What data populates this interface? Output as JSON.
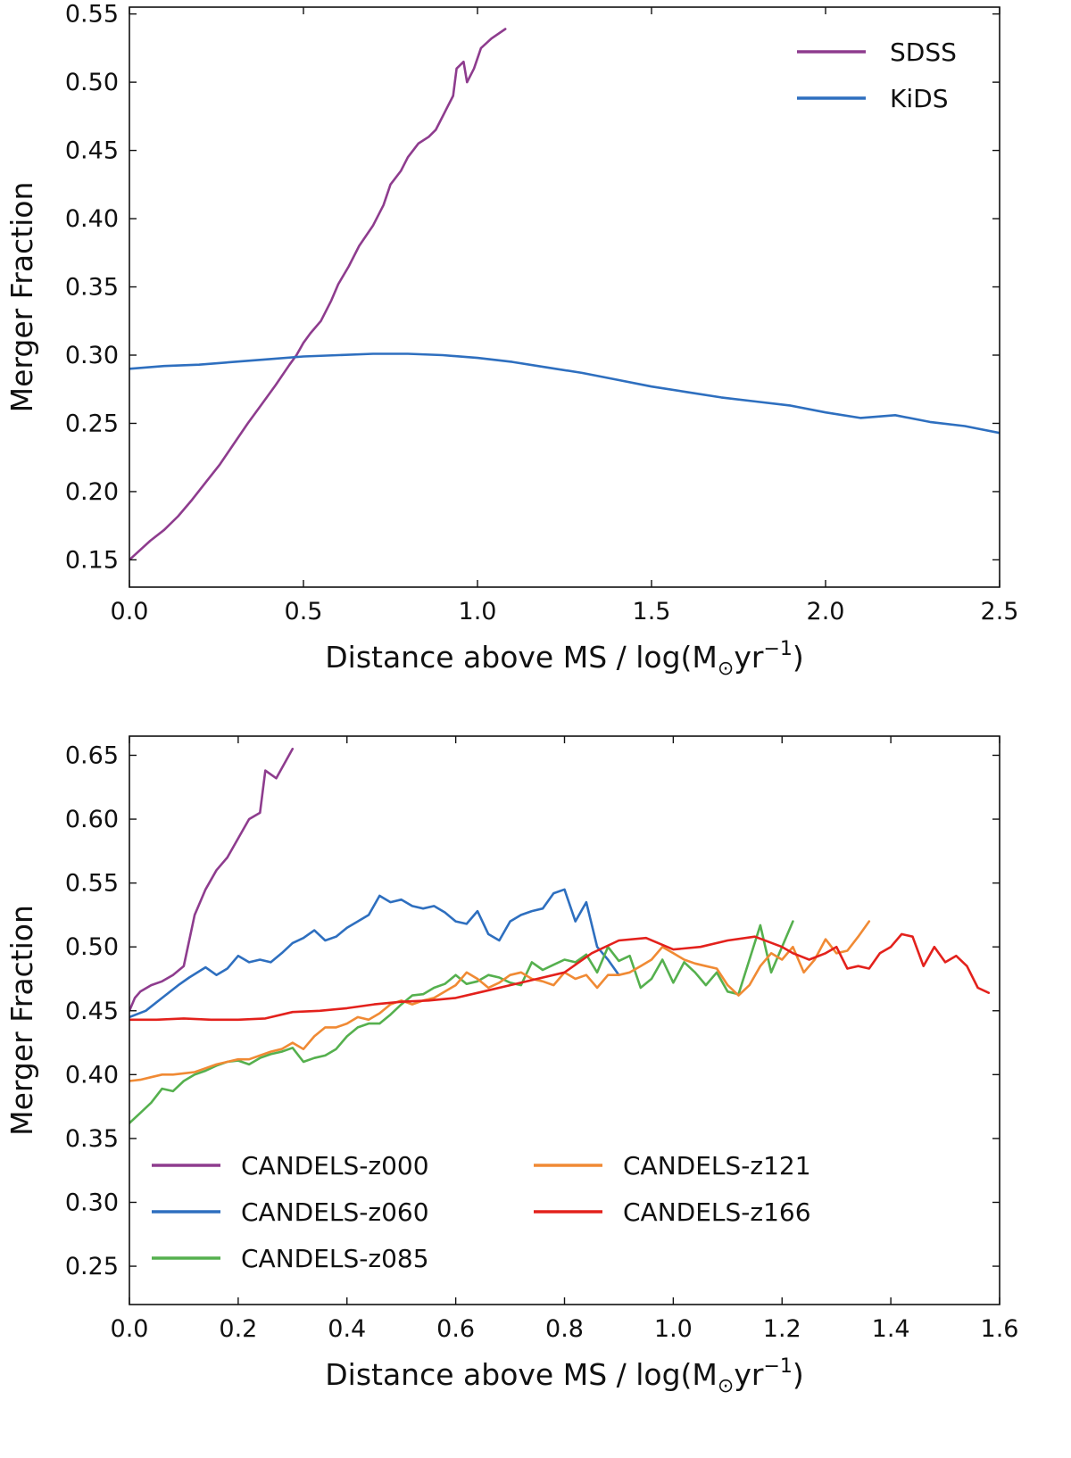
{
  "chart_data": [
    {
      "type": "line",
      "title": "",
      "xlabel": "Distance above MS / log(M",
      "xlabel_unit": "yr",
      "xlabel_exp": "−1",
      "xlabel_close": ")",
      "sun_symbol": "⊙",
      "ylabel": "Merger Fraction",
      "xlim": [
        0.0,
        2.5
      ],
      "ylim": [
        0.13,
        0.555
      ],
      "xticks": [
        "0.0",
        "0.5",
        "1.0",
        "1.5",
        "2.0",
        "2.5"
      ],
      "yticks": [
        "0.15",
        "0.20",
        "0.25",
        "0.30",
        "0.35",
        "0.40",
        "0.45",
        "0.50",
        "0.55"
      ],
      "legend_position": "top-right",
      "series": [
        {
          "name": "SDSS",
          "color": "#8e3c8e",
          "x": [
            0.0,
            0.03,
            0.06,
            0.1,
            0.14,
            0.18,
            0.22,
            0.26,
            0.3,
            0.34,
            0.38,
            0.42,
            0.46,
            0.48,
            0.5,
            0.52,
            0.55,
            0.58,
            0.6,
            0.63,
            0.66,
            0.7,
            0.73,
            0.75,
            0.78,
            0.8,
            0.83,
            0.86,
            0.88,
            0.9,
            0.91,
            0.93,
            0.94,
            0.96,
            0.97,
            0.99,
            1.01,
            1.04,
            1.08
          ],
          "values": [
            0.15,
            0.157,
            0.164,
            0.172,
            0.182,
            0.194,
            0.207,
            0.22,
            0.235,
            0.25,
            0.264,
            0.278,
            0.293,
            0.3,
            0.309,
            0.316,
            0.325,
            0.34,
            0.352,
            0.365,
            0.38,
            0.395,
            0.41,
            0.425,
            0.435,
            0.445,
            0.455,
            0.46,
            0.465,
            0.475,
            0.48,
            0.49,
            0.51,
            0.515,
            0.5,
            0.51,
            0.525,
            0.532,
            0.539
          ]
        },
        {
          "name": "KiDS",
          "color": "#2e6fbf",
          "x": [
            0.0,
            0.1,
            0.2,
            0.3,
            0.4,
            0.5,
            0.6,
            0.7,
            0.8,
            0.9,
            1.0,
            1.1,
            1.2,
            1.3,
            1.4,
            1.5,
            1.6,
            1.7,
            1.8,
            1.9,
            2.0,
            2.1,
            2.2,
            2.3,
            2.4,
            2.5
          ],
          "values": [
            0.29,
            0.292,
            0.293,
            0.295,
            0.297,
            0.299,
            0.3,
            0.301,
            0.301,
            0.3,
            0.298,
            0.295,
            0.291,
            0.287,
            0.282,
            0.277,
            0.273,
            0.269,
            0.266,
            0.263,
            0.258,
            0.254,
            0.256,
            0.251,
            0.248,
            0.243
          ]
        }
      ]
    },
    {
      "type": "line",
      "title": "",
      "xlabel": "Distance above MS / log(M",
      "xlabel_unit": "yr",
      "xlabel_exp": "−1",
      "xlabel_close": ")",
      "sun_symbol": "⊙",
      "ylabel": "Merger Fraction",
      "xlim": [
        0.0,
        1.6
      ],
      "ylim": [
        0.22,
        0.665
      ],
      "xticks": [
        "0.0",
        "0.2",
        "0.4",
        "0.6",
        "0.8",
        "1.0",
        "1.2",
        "1.4",
        "1.6"
      ],
      "yticks": [
        "0.25",
        "0.30",
        "0.35",
        "0.40",
        "0.45",
        "0.50",
        "0.55",
        "0.60",
        "0.65"
      ],
      "legend_position": "bottom-left",
      "series": [
        {
          "name": "CANDELS-z000",
          "color": "#8e3c8e",
          "x": [
            0.0,
            0.01,
            0.02,
            0.04,
            0.06,
            0.08,
            0.1,
            0.12,
            0.14,
            0.16,
            0.18,
            0.2,
            0.22,
            0.24,
            0.25,
            0.27,
            0.3
          ],
          "values": [
            0.45,
            0.46,
            0.465,
            0.47,
            0.473,
            0.478,
            0.485,
            0.525,
            0.545,
            0.56,
            0.57,
            0.585,
            0.6,
            0.605,
            0.638,
            0.632,
            0.655
          ]
        },
        {
          "name": "CANDELS-z060",
          "color": "#2e6fbf",
          "x": [
            0.0,
            0.03,
            0.06,
            0.09,
            0.11,
            0.14,
            0.16,
            0.18,
            0.2,
            0.22,
            0.24,
            0.26,
            0.28,
            0.3,
            0.32,
            0.34,
            0.36,
            0.38,
            0.4,
            0.42,
            0.44,
            0.46,
            0.48,
            0.5,
            0.52,
            0.54,
            0.56,
            0.58,
            0.6,
            0.62,
            0.64,
            0.66,
            0.68,
            0.7,
            0.72,
            0.74,
            0.76,
            0.78,
            0.8,
            0.82,
            0.84,
            0.86,
            0.88,
            0.9
          ],
          "values": [
            0.445,
            0.45,
            0.46,
            0.47,
            0.476,
            0.484,
            0.478,
            0.483,
            0.493,
            0.488,
            0.49,
            0.488,
            0.495,
            0.503,
            0.507,
            0.513,
            0.505,
            0.508,
            0.515,
            0.52,
            0.525,
            0.54,
            0.535,
            0.537,
            0.532,
            0.53,
            0.532,
            0.527,
            0.52,
            0.518,
            0.528,
            0.51,
            0.505,
            0.52,
            0.525,
            0.528,
            0.53,
            0.542,
            0.545,
            0.52,
            0.535,
            0.5,
            0.49,
            0.478
          ]
        },
        {
          "name": "CANDELS-z085",
          "color": "#55b04e",
          "x": [
            0.0,
            0.02,
            0.04,
            0.06,
            0.08,
            0.1,
            0.12,
            0.14,
            0.16,
            0.18,
            0.2,
            0.22,
            0.24,
            0.26,
            0.28,
            0.3,
            0.32,
            0.34,
            0.36,
            0.38,
            0.4,
            0.42,
            0.44,
            0.46,
            0.48,
            0.5,
            0.52,
            0.54,
            0.56,
            0.58,
            0.6,
            0.62,
            0.64,
            0.66,
            0.68,
            0.7,
            0.72,
            0.74,
            0.76,
            0.78,
            0.8,
            0.82,
            0.84,
            0.86,
            0.88,
            0.9,
            0.92,
            0.94,
            0.96,
            0.98,
            1.0,
            1.02,
            1.04,
            1.06,
            1.08,
            1.1,
            1.12,
            1.14,
            1.16,
            1.18,
            1.2,
            1.22
          ],
          "values": [
            0.362,
            0.37,
            0.378,
            0.389,
            0.387,
            0.395,
            0.4,
            0.403,
            0.407,
            0.41,
            0.411,
            0.408,
            0.413,
            0.416,
            0.418,
            0.421,
            0.41,
            0.413,
            0.415,
            0.42,
            0.43,
            0.437,
            0.44,
            0.44,
            0.447,
            0.455,
            0.462,
            0.463,
            0.468,
            0.471,
            0.478,
            0.471,
            0.473,
            0.478,
            0.476,
            0.472,
            0.47,
            0.488,
            0.482,
            0.486,
            0.49,
            0.488,
            0.494,
            0.48,
            0.5,
            0.489,
            0.493,
            0.468,
            0.475,
            0.49,
            0.472,
            0.488,
            0.48,
            0.47,
            0.48,
            0.465,
            0.463,
            0.49,
            0.517,
            0.48,
            0.5,
            0.52
          ]
        },
        {
          "name": "CANDELS-z121",
          "color": "#f08a34",
          "x": [
            0.0,
            0.02,
            0.04,
            0.06,
            0.08,
            0.1,
            0.12,
            0.14,
            0.16,
            0.18,
            0.2,
            0.22,
            0.24,
            0.26,
            0.28,
            0.3,
            0.32,
            0.34,
            0.36,
            0.38,
            0.4,
            0.42,
            0.44,
            0.46,
            0.48,
            0.5,
            0.52,
            0.54,
            0.56,
            0.58,
            0.6,
            0.62,
            0.64,
            0.66,
            0.68,
            0.7,
            0.72,
            0.74,
            0.76,
            0.78,
            0.8,
            0.82,
            0.84,
            0.86,
            0.88,
            0.9,
            0.92,
            0.94,
            0.96,
            0.98,
            1.0,
            1.02,
            1.04,
            1.06,
            1.08,
            1.1,
            1.12,
            1.14,
            1.16,
            1.18,
            1.2,
            1.22,
            1.24,
            1.26,
            1.28,
            1.3,
            1.32,
            1.34,
            1.36
          ],
          "values": [
            0.395,
            0.396,
            0.398,
            0.4,
            0.4,
            0.401,
            0.402,
            0.405,
            0.408,
            0.41,
            0.412,
            0.412,
            0.415,
            0.418,
            0.42,
            0.425,
            0.42,
            0.43,
            0.437,
            0.437,
            0.44,
            0.445,
            0.443,
            0.448,
            0.455,
            0.458,
            0.455,
            0.458,
            0.46,
            0.465,
            0.47,
            0.48,
            0.475,
            0.468,
            0.472,
            0.478,
            0.48,
            0.475,
            0.473,
            0.47,
            0.48,
            0.475,
            0.478,
            0.468,
            0.478,
            0.478,
            0.48,
            0.485,
            0.49,
            0.5,
            0.495,
            0.49,
            0.487,
            0.485,
            0.483,
            0.47,
            0.462,
            0.47,
            0.485,
            0.495,
            0.49,
            0.5,
            0.48,
            0.49,
            0.506,
            0.495,
            0.497,
            0.508,
            0.52
          ]
        },
        {
          "name": "CANDELS-z166",
          "color": "#e3211c",
          "x": [
            0.0,
            0.05,
            0.1,
            0.15,
            0.2,
            0.25,
            0.3,
            0.35,
            0.4,
            0.45,
            0.5,
            0.55,
            0.6,
            0.65,
            0.7,
            0.75,
            0.8,
            0.85,
            0.9,
            0.95,
            1.0,
            1.05,
            1.1,
            1.15,
            1.2,
            1.22,
            1.25,
            1.28,
            1.3,
            1.32,
            1.34,
            1.36,
            1.38,
            1.4,
            1.42,
            1.44,
            1.46,
            1.48,
            1.5,
            1.52,
            1.54,
            1.56,
            1.58
          ],
          "values": [
            0.443,
            0.443,
            0.444,
            0.443,
            0.443,
            0.444,
            0.449,
            0.45,
            0.452,
            0.455,
            0.457,
            0.458,
            0.46,
            0.465,
            0.47,
            0.475,
            0.48,
            0.495,
            0.505,
            0.507,
            0.498,
            0.5,
            0.505,
            0.508,
            0.5,
            0.495,
            0.49,
            0.495,
            0.5,
            0.483,
            0.485,
            0.483,
            0.495,
            0.5,
            0.51,
            0.508,
            0.485,
            0.5,
            0.488,
            0.493,
            0.485,
            0.468,
            0.464
          ]
        }
      ]
    }
  ]
}
